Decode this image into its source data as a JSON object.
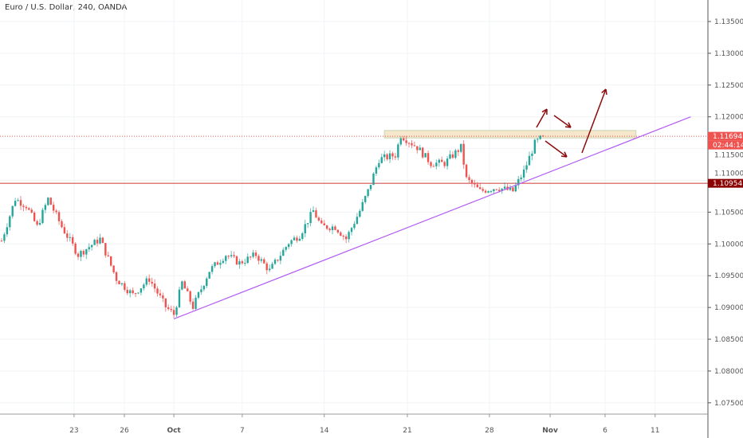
{
  "header": {
    "title": "Euro / U.S. Dollar, 240, OANDA"
  },
  "colors": {
    "up": "#26a69a",
    "down": "#ef5350",
    "trendline": "#b45cf5",
    "support": "#c62828",
    "arrow": "#8b0d0d",
    "zone_fill": "#f5e6cc",
    "zone_border": "#c9d6b0",
    "price_tag": "#ef5350",
    "support_tag": "#8b0000"
  },
  "chart_data": {
    "type": "candlestick",
    "title": "Euro / U.S. Dollar, 240, OANDA",
    "ylim": [
      1.0715,
      1.1395
    ],
    "yticks": [
      "1.13500",
      "1.13000",
      "1.12500",
      "1.12000",
      "1.11500",
      "1.11000",
      "1.10500",
      "1.10000",
      "1.09500",
      "1.09000",
      "1.08500",
      "1.08000",
      "1.07500"
    ],
    "ytick_values": [
      1.135,
      1.13,
      1.125,
      1.12,
      1.115,
      1.11,
      1.105,
      1.1,
      1.095,
      1.09,
      1.085,
      1.08,
      1.075
    ],
    "xticks": [
      {
        "label": "23",
        "candle": 26.5,
        "bold": false
      },
      {
        "label": "26",
        "candle": 44.9,
        "bold": false
      },
      {
        "label": "Oct",
        "candle": 63,
        "bold": true
      },
      {
        "label": "7",
        "candle": 88,
        "bold": false
      },
      {
        "label": "14",
        "candle": 118,
        "bold": false
      },
      {
        "label": "21",
        "candle": 148.4,
        "bold": false
      },
      {
        "label": "28",
        "candle": 178.4,
        "bold": false
      },
      {
        "label": "Nov",
        "candle": 200.6,
        "bold": true
      },
      {
        "label": "6",
        "candle": 220.7,
        "bold": false
      },
      {
        "label": "11",
        "candle": 239
      }
    ],
    "price_path": [
      [
        0,
        1.1005
      ],
      [
        5,
        1.1071
      ],
      [
        9,
        1.106
      ],
      [
        13,
        1.1027
      ],
      [
        17,
        1.1071
      ],
      [
        22,
        1.1027
      ],
      [
        28,
        1.0983
      ],
      [
        36,
        1.1008
      ],
      [
        42,
        1.0945
      ],
      [
        48,
        1.092
      ],
      [
        54,
        1.0945
      ],
      [
        60,
        1.0901
      ],
      [
        63,
        1.0889
      ],
      [
        66,
        1.0939
      ],
      [
        70,
        1.0901
      ],
      [
        76,
        1.0958
      ],
      [
        82,
        1.0983
      ],
      [
        87,
        1.097
      ],
      [
        93,
        1.0983
      ],
      [
        98,
        1.0958
      ],
      [
        105,
        1.1002
      ],
      [
        109,
        1.1014
      ],
      [
        114,
        1.1052
      ],
      [
        117,
        1.1027
      ],
      [
        122,
        1.1027
      ],
      [
        126,
        1.1008
      ],
      [
        131,
        1.1052
      ],
      [
        134,
        1.1083
      ],
      [
        138,
        1.1133
      ],
      [
        144,
        1.114
      ],
      [
        146,
        1.1171
      ],
      [
        152,
        1.1152
      ],
      [
        157,
        1.1127
      ],
      [
        162,
        1.1127
      ],
      [
        168,
        1.1152
      ],
      [
        170,
        1.1102
      ],
      [
        175,
        1.1083
      ],
      [
        181,
        1.1089
      ],
      [
        187,
        1.1083
      ],
      [
        191,
        1.1114
      ],
      [
        195,
        1.1158
      ],
      [
        198,
        1.1169
      ]
    ],
    "current_price": "1.11694",
    "countdown": "02:44:14",
    "support_level": "1.10954",
    "trendline": [
      [
        63,
        1.0882
      ],
      [
        252,
        1.12
      ]
    ],
    "resistance_zone": [
      140,
      232,
      1.1168,
      1.1176
    ]
  }
}
